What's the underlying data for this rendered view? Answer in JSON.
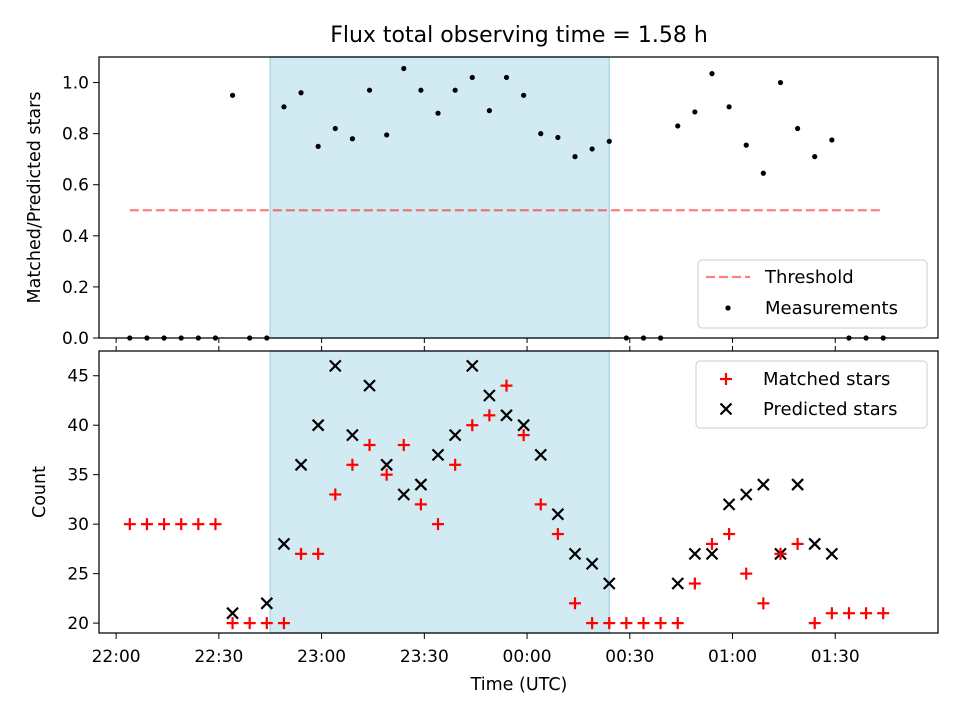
{
  "title": "Flux total observing time = 1.58 h",
  "colors": {
    "shade": "#add8e6",
    "threshold": "#ff0000",
    "measurement": "#000000",
    "matched": "#ff0000",
    "predicted": "#000000"
  },
  "chart_data": [
    {
      "type": "scatter",
      "ylabel": "Matched/Predicted stars",
      "ylim": [
        0,
        1.1
      ],
      "yticks": [
        "0.0",
        "0.2",
        "0.4",
        "0.6",
        "0.8",
        "1.0"
      ],
      "shaded_interval": [
        "22:45",
        "00:24"
      ],
      "legend": {
        "placement": "lower-right",
        "entries": [
          "Threshold",
          "Measurements"
        ]
      },
      "threshold": {
        "name": "Threshold",
        "value": 0.5,
        "x_range": [
          "22:04",
          "01:44"
        ]
      },
      "measurements": {
        "name": "Measurements",
        "x": [
          "22:04",
          "22:09",
          "22:14",
          "22:19",
          "22:24",
          "22:29",
          "22:34",
          "22:39",
          "22:44",
          "22:49",
          "22:54",
          "22:59",
          "23:04",
          "23:09",
          "23:14",
          "23:19",
          "23:24",
          "23:29",
          "23:34",
          "23:39",
          "23:44",
          "23:49",
          "23:54",
          "23:59",
          "00:04",
          "00:09",
          "00:14",
          "00:19",
          "00:24",
          "00:29",
          "00:34",
          "00:39",
          "00:44",
          "00:49",
          "00:54",
          "00:59",
          "01:04",
          "01:09",
          "01:14",
          "01:19",
          "01:24",
          "01:29",
          "01:34",
          "01:39",
          "01:44"
        ],
        "y": [
          0,
          0,
          0,
          0,
          0,
          0,
          0.95,
          0,
          0,
          0.905,
          0.96,
          0.75,
          0.82,
          0.78,
          0.97,
          0.795,
          1.055,
          0.97,
          0.88,
          0.97,
          1.02,
          0.89,
          1.02,
          0.95,
          0.8,
          0.785,
          0.71,
          0.74,
          0.77,
          0,
          0,
          0,
          0.83,
          0.885,
          1.035,
          0.905,
          0.755,
          0.645,
          1.0,
          0.82,
          0.71,
          0.775,
          0,
          0,
          0
        ]
      }
    },
    {
      "type": "scatter",
      "xlabel": "Time (UTC)",
      "ylabel": "Count",
      "ylim": [
        19,
        47.5
      ],
      "yticks": [
        "20",
        "25",
        "30",
        "35",
        "40",
        "45"
      ],
      "xlim": [
        "21:55",
        "02:00"
      ],
      "xticks": [
        "22:00",
        "22:30",
        "23:00",
        "23:30",
        "00:00",
        "00:30",
        "01:00",
        "01:30"
      ],
      "shaded_interval": [
        "22:45",
        "00:24"
      ],
      "legend": {
        "placement": "top-right",
        "entries": [
          "Matched stars",
          "Predicted stars"
        ]
      },
      "series": [
        {
          "name": "Matched stars",
          "marker": "+",
          "x": [
            "22:04",
            "22:09",
            "22:14",
            "22:19",
            "22:24",
            "22:29",
            "22:34",
            "22:39",
            "22:44",
            "22:49",
            "22:54",
            "22:59",
            "23:04",
            "23:09",
            "23:14",
            "23:19",
            "23:24",
            "23:29",
            "23:34",
            "23:39",
            "23:44",
            "23:49",
            "23:54",
            "23:59",
            "00:04",
            "00:09",
            "00:14",
            "00:19",
            "00:24",
            "00:29",
            "00:34",
            "00:39",
            "00:44",
            "00:49",
            "00:54",
            "00:59",
            "01:04",
            "01:09",
            "01:14",
            "01:19",
            "01:24",
            "01:29",
            "01:34",
            "01:39",
            "01:44"
          ],
          "y": [
            30,
            30,
            30,
            30,
            30,
            30,
            20,
            20,
            20,
            20,
            27,
            27,
            33,
            36,
            38,
            35,
            38,
            32,
            30,
            36,
            40,
            41,
            44,
            39,
            32,
            29,
            22,
            20,
            20,
            20,
            20,
            20,
            20,
            24,
            28,
            29,
            25,
            22,
            27,
            28,
            20,
            21,
            21,
            21,
            21
          ]
        },
        {
          "name": "Predicted stars",
          "marker": "x",
          "x": [
            "22:34",
            "22:44",
            "22:49",
            "22:54",
            "22:59",
            "23:04",
            "23:09",
            "23:14",
            "23:19",
            "23:24",
            "23:29",
            "23:34",
            "23:39",
            "23:44",
            "23:49",
            "23:54",
            "23:59",
            "00:04",
            "00:09",
            "00:14",
            "00:19",
            "00:24",
            "00:44",
            "00:49",
            "00:54",
            "00:59",
            "01:04",
            "01:09",
            "01:14",
            "01:19",
            "01:24",
            "01:29"
          ],
          "y": [
            21,
            22,
            28,
            36,
            40,
            46,
            39,
            44,
            36,
            33,
            34,
            37,
            39,
            46,
            43,
            41,
            40,
            37,
            31,
            27,
            26,
            24,
            24,
            27,
            27,
            32,
            33,
            34,
            27,
            34,
            28,
            27
          ]
        }
      ]
    }
  ]
}
